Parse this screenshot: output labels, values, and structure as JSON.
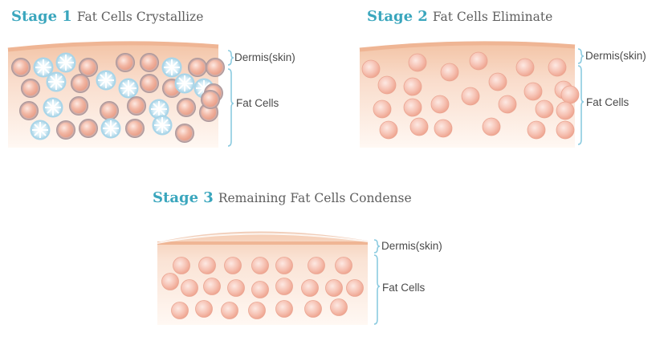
{
  "stages": [
    {
      "number": "Stage 1",
      "caption": "Fat Cells Crystallize"
    },
    {
      "number": "Stage 2",
      "caption": "Fat Cells Eliminate"
    },
    {
      "number": "Stage 3",
      "caption": "Remaining Fat Cells Condense"
    }
  ],
  "labels": {
    "dermis": "Dermis(skin)",
    "fat": "Fat Cells"
  },
  "colors": {
    "title_accent": "#3aa6bd",
    "caption_text": "#5f5f5f",
    "skin_top": "#f3c9ad",
    "skin_bottom": "#fef5ef",
    "fat_cell": "#f0b2a0",
    "crystal_cell": "#c4e3f2",
    "bracket": "#8ccbe0"
  },
  "panels": [
    {
      "name": "stage-1-tissue",
      "cells": [
        {
          "type": "fat"
        },
        {
          "type": "crystal"
        },
        {
          "type": "crystal"
        },
        {
          "type": "fat"
        },
        {
          "type": "fat"
        },
        {
          "type": "fat"
        },
        {
          "type": "crystal"
        },
        {
          "type": "fat"
        },
        {
          "type": "fat"
        },
        {
          "type": "fat"
        },
        {
          "type": "crystal"
        },
        {
          "type": "fat"
        },
        {
          "type": "crystal"
        },
        {
          "type": "crystal"
        },
        {
          "type": "fat"
        },
        {
          "type": "fat"
        },
        {
          "type": "crystal"
        },
        {
          "type": "crystal"
        },
        {
          "type": "fat"
        },
        {
          "type": "fat"
        },
        {
          "type": "crystal"
        },
        {
          "type": "fat"
        },
        {
          "type": "fat"
        },
        {
          "type": "fat"
        },
        {
          "type": "crystal"
        },
        {
          "type": "fat"
        },
        {
          "type": "fat"
        },
        {
          "type": "fat"
        },
        {
          "type": "crystal"
        },
        {
          "type": "fat"
        },
        {
          "type": "fat"
        },
        {
          "type": "crystal"
        },
        {
          "type": "fat"
        },
        {
          "type": "crystal"
        },
        {
          "type": "fat"
        }
      ]
    },
    {
      "name": "stage-2-tissue",
      "cells": [
        {
          "type": "fat"
        },
        {
          "type": "fat"
        },
        {
          "type": "fat"
        },
        {
          "type": "fat"
        },
        {
          "type": "fat"
        },
        {
          "type": "fat"
        },
        {
          "type": "fat"
        },
        {
          "type": "fat"
        },
        {
          "type": "fat"
        },
        {
          "type": "fat"
        },
        {
          "type": "fat"
        },
        {
          "type": "fat"
        },
        {
          "type": "fat"
        },
        {
          "type": "fat"
        },
        {
          "type": "fat"
        },
        {
          "type": "fat"
        },
        {
          "type": "fat"
        },
        {
          "type": "fat"
        },
        {
          "type": "fat"
        },
        {
          "type": "fat"
        },
        {
          "type": "fat"
        },
        {
          "type": "fat"
        },
        {
          "type": "fat"
        },
        {
          "type": "fat"
        },
        {
          "type": "fat"
        }
      ]
    },
    {
      "name": "stage-3-tissue",
      "cells": [
        {
          "type": "fat"
        },
        {
          "type": "fat"
        },
        {
          "type": "fat"
        },
        {
          "type": "fat"
        },
        {
          "type": "fat"
        },
        {
          "type": "fat"
        },
        {
          "type": "fat"
        },
        {
          "type": "fat"
        },
        {
          "type": "fat"
        },
        {
          "type": "fat"
        },
        {
          "type": "fat"
        },
        {
          "type": "fat"
        },
        {
          "type": "fat"
        },
        {
          "type": "fat"
        },
        {
          "type": "fat"
        },
        {
          "type": "fat"
        },
        {
          "type": "fat"
        },
        {
          "type": "fat"
        },
        {
          "type": "fat"
        },
        {
          "type": "fat"
        },
        {
          "type": "fat"
        },
        {
          "type": "fat"
        },
        {
          "type": "fat"
        }
      ]
    }
  ]
}
